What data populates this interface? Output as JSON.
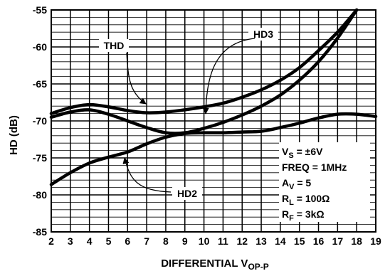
{
  "chart_data": {
    "type": "line",
    "title": "",
    "xlabel": "DIFFERENTIAL V",
    "xlabel_sub": "OP-P",
    "ylabel": "HD (dB)",
    "xlim": [
      2,
      19
    ],
    "ylim": [
      -85,
      -55
    ],
    "x_ticks": [
      "2",
      "3",
      "4",
      "5",
      "6",
      "7",
      "8",
      "9",
      "10",
      "11",
      "12",
      "13",
      "14",
      "15",
      "16",
      "17",
      "18",
      "19"
    ],
    "y_ticks": [
      "-55",
      "-60",
      "-65",
      "-70",
      "-75",
      "-80",
      "-85"
    ],
    "grid": true,
    "series": [
      {
        "name": "THD",
        "x": [
          2,
          3,
          4,
          5,
          6,
          7,
          8,
          9,
          10,
          11,
          12,
          13,
          14,
          15,
          16,
          17,
          18
        ],
        "y": [
          -69.0,
          -68.2,
          -67.8,
          -68.1,
          -68.6,
          -68.9,
          -68.8,
          -68.5,
          -68.1,
          -67.6,
          -66.8,
          -65.8,
          -64.5,
          -62.8,
          -60.5,
          -58.0,
          -55.0
        ]
      },
      {
        "name": "HD3",
        "x": [
          2,
          3,
          4,
          5,
          6,
          7,
          8,
          9,
          10,
          11,
          12,
          13,
          14,
          15,
          16,
          17,
          18
        ],
        "y": [
          -69.5,
          -68.8,
          -68.5,
          -69.1,
          -70.0,
          -70.9,
          -71.6,
          -71.6,
          -71.0,
          -70.2,
          -69.2,
          -68.0,
          -66.5,
          -64.5,
          -62.0,
          -58.8,
          -55.0
        ]
      },
      {
        "name": "HD2",
        "x": [
          2,
          3,
          4,
          5,
          6,
          7,
          8,
          9,
          10,
          11,
          12,
          13,
          14,
          15,
          16,
          17,
          18,
          19
        ],
        "y": [
          -78.6,
          -77.0,
          -75.7,
          -74.9,
          -74.2,
          -73.1,
          -72.2,
          -71.7,
          -71.6,
          -71.6,
          -71.5,
          -71.4,
          -70.9,
          -70.3,
          -69.6,
          -69.1,
          -69.1,
          -69.4
        ]
      }
    ],
    "annotations": [
      {
        "text": "THD",
        "target": "THD"
      },
      {
        "text": "HD3",
        "target": "HD3"
      },
      {
        "text": "HD2",
        "target": "HD2"
      }
    ],
    "conditions": [
      {
        "main": "V",
        "sub": "S",
        "rest": " = ±6V"
      },
      {
        "main": "FREQ = 1MHz",
        "sub": "",
        "rest": ""
      },
      {
        "main": "A",
        "sub": "V",
        "rest": " = 5"
      },
      {
        "main": "R",
        "sub": "L",
        "rest": " = 100Ω"
      },
      {
        "main": "R",
        "sub": "F",
        "rest": " = 3kΩ"
      }
    ]
  }
}
